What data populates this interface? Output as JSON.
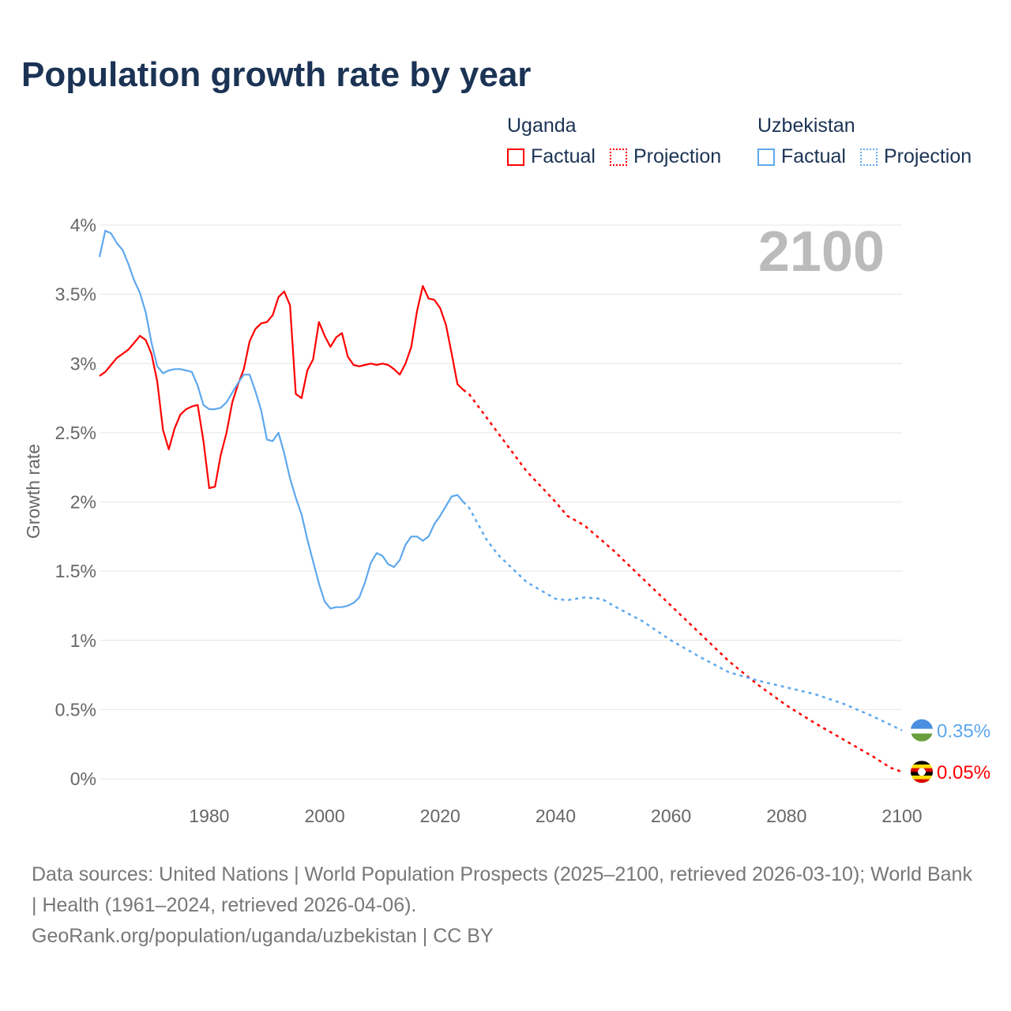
{
  "chart_data": {
    "type": "line",
    "title": "Population growth rate by year",
    "ylabel": "Growth rate",
    "xlabel": "",
    "xlim": [
      1961,
      2100
    ],
    "ylim": [
      0,
      4
    ],
    "x_ticks": [
      1980,
      2000,
      2020,
      2040,
      2060,
      2080,
      2100
    ],
    "x_tick_labels": [
      "1980",
      "2000",
      "2020",
      "2040",
      "2060",
      "2080",
      "2100"
    ],
    "y_ticks": [
      0,
      0.5,
      1,
      1.5,
      2,
      2.5,
      3,
      3.5,
      4
    ],
    "y_tick_labels": [
      "0%",
      "0.5%",
      "1%",
      "1.5%",
      "2%",
      "2.5%",
      "3%",
      "3.5%",
      "4%"
    ],
    "grid": true,
    "legend_position": "top-right",
    "current_year_label": "2100",
    "series": [
      {
        "name": "Uganda",
        "color": "#ff0000",
        "end_label": "0.05%",
        "factual": {
          "label": "Factual",
          "x": [
            1961,
            1962,
            1963,
            1964,
            1965,
            1966,
            1967,
            1968,
            1969,
            1970,
            1971,
            1972,
            1973,
            1974,
            1975,
            1976,
            1977,
            1978,
            1979,
            1980,
            1981,
            1982,
            1983,
            1984,
            1985,
            1986,
            1987,
            1988,
            1989,
            1990,
            1991,
            1992,
            1993,
            1994,
            1995,
            1996,
            1997,
            1998,
            1999,
            2000,
            2001,
            2002,
            2003,
            2004,
            2005,
            2006,
            2007,
            2008,
            2009,
            2010,
            2011,
            2012,
            2013,
            2014,
            2015,
            2016,
            2017,
            2018,
            2019,
            2020,
            2021,
            2022,
            2023,
            2024
          ],
          "y": [
            2.91,
            2.94,
            2.99,
            3.04,
            3.07,
            3.1,
            3.15,
            3.2,
            3.17,
            3.07,
            2.87,
            2.52,
            2.38,
            2.53,
            2.63,
            2.67,
            2.69,
            2.7,
            2.44,
            2.1,
            2.11,
            2.34,
            2.5,
            2.72,
            2.85,
            2.96,
            3.16,
            3.25,
            3.29,
            3.3,
            3.35,
            3.48,
            3.52,
            3.42,
            2.78,
            2.75,
            2.95,
            3.03,
            3.3,
            3.2,
            3.12,
            3.19,
            3.22,
            3.05,
            2.99,
            2.98,
            2.99,
            3.0,
            2.99,
            3.0,
            2.99,
            2.96,
            2.92,
            3.0,
            3.12,
            3.38,
            3.56,
            3.47,
            3.46,
            3.4,
            3.28,
            3.07,
            2.85,
            2.81
          ]
        },
        "projection": {
          "label": "Projection",
          "x": [
            2024,
            2025,
            2030,
            2035,
            2040,
            2042,
            2045,
            2050,
            2055,
            2060,
            2065,
            2070,
            2075,
            2080,
            2085,
            2090,
            2095,
            2098,
            2100
          ],
          "y": [
            2.81,
            2.78,
            2.5,
            2.22,
            2.0,
            1.9,
            1.83,
            1.65,
            1.45,
            1.25,
            1.05,
            0.85,
            0.68,
            0.53,
            0.4,
            0.28,
            0.16,
            0.08,
            0.05
          ]
        }
      },
      {
        "name": "Uzbekistan",
        "color": "#5ea8ee",
        "end_label": "0.35%",
        "factual": {
          "label": "Factual",
          "x": [
            1961,
            1962,
            1963,
            1964,
            1965,
            1966,
            1967,
            1968,
            1969,
            1970,
            1971,
            1972,
            1973,
            1974,
            1975,
            1976,
            1977,
            1978,
            1979,
            1980,
            1981,
            1982,
            1983,
            1984,
            1985,
            1986,
            1987,
            1988,
            1989,
            1990,
            1991,
            1992,
            1993,
            1994,
            1995,
            1996,
            1997,
            1998,
            1999,
            2000,
            2001,
            2002,
            2003,
            2004,
            2005,
            2006,
            2007,
            2008,
            2009,
            2010,
            2011,
            2012,
            2013,
            2014,
            2015,
            2016,
            2017,
            2018,
            2019,
            2020,
            2021,
            2022,
            2023,
            2024
          ],
          "y": [
            3.77,
            3.96,
            3.94,
            3.87,
            3.82,
            3.72,
            3.6,
            3.51,
            3.37,
            3.15,
            2.98,
            2.93,
            2.95,
            2.96,
            2.96,
            2.95,
            2.94,
            2.84,
            2.7,
            2.67,
            2.67,
            2.68,
            2.72,
            2.79,
            2.86,
            2.92,
            2.92,
            2.8,
            2.66,
            2.45,
            2.44,
            2.5,
            2.35,
            2.17,
            2.03,
            1.91,
            1.73,
            1.57,
            1.41,
            1.28,
            1.23,
            1.24,
            1.24,
            1.25,
            1.27,
            1.31,
            1.42,
            1.56,
            1.63,
            1.61,
            1.55,
            1.53,
            1.58,
            1.69,
            1.75,
            1.75,
            1.72,
            1.75,
            1.84,
            1.9,
            1.97,
            2.04,
            2.05,
            2.0
          ]
        },
        "projection": {
          "label": "Projection",
          "x": [
            2024,
            2025,
            2028,
            2030,
            2035,
            2040,
            2042,
            2045,
            2048,
            2050,
            2055,
            2060,
            2065,
            2070,
            2075,
            2080,
            2085,
            2090,
            2095,
            2100
          ],
          "y": [
            2.0,
            1.96,
            1.73,
            1.62,
            1.42,
            1.3,
            1.29,
            1.31,
            1.3,
            1.25,
            1.14,
            1.0,
            0.88,
            0.77,
            0.71,
            0.66,
            0.61,
            0.54,
            0.45,
            0.35
          ]
        }
      }
    ]
  },
  "legend": {
    "groups": [
      {
        "name": "Uganda",
        "factual": "Factual",
        "projection": "Projection"
      },
      {
        "name": "Uzbekistan",
        "factual": "Factual",
        "projection": "Projection"
      }
    ]
  },
  "footer": {
    "sources": "Data sources: United Nations | World Population Prospects (2025–2100, retrieved 2026-03-10); World Bank | Health (1961–2024, retrieved 2026-04-06).",
    "credit": "GeoRank.org/population/uganda/uzbekistan | CC BY"
  }
}
